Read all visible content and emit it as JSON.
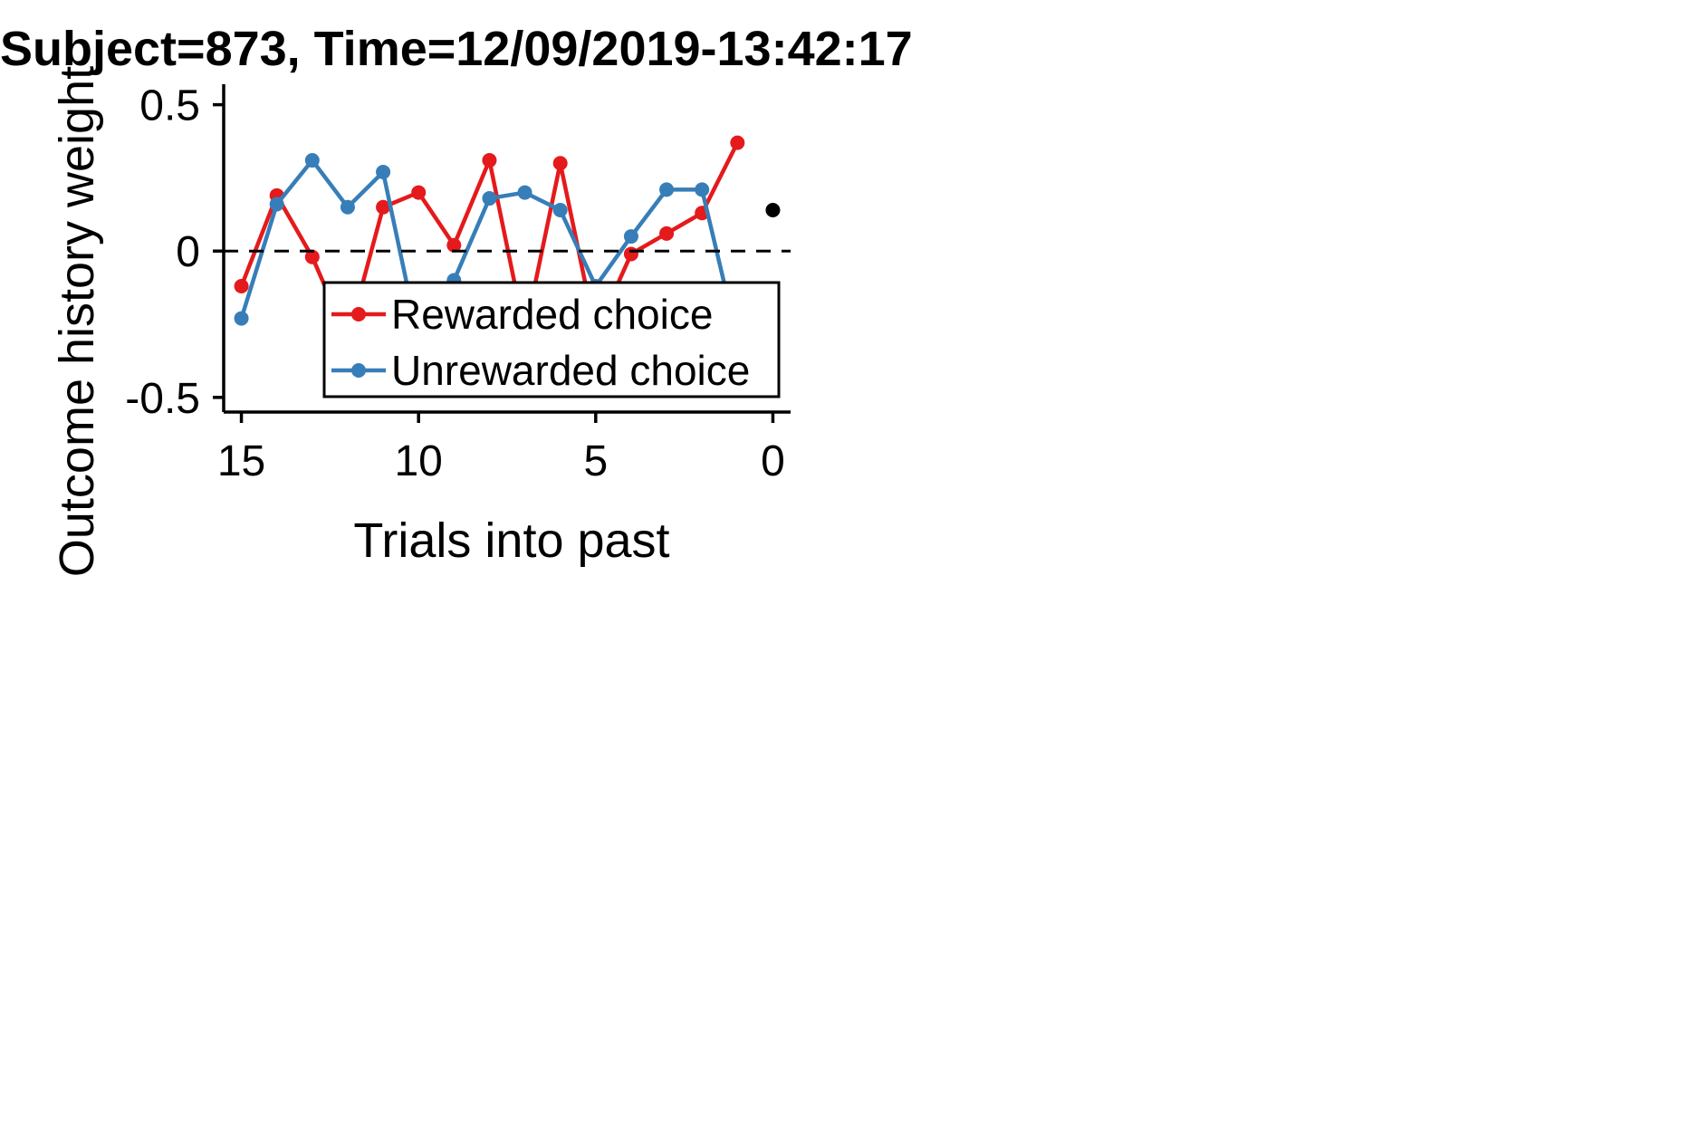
{
  "chart_data": {
    "type": "line",
    "title": "Subject=873, Time=12/09/2019-13:42:17",
    "xlabel": "Trials into past",
    "ylabel": "Outcome history weight",
    "xlim": [
      15.5,
      -0.5
    ],
    "ylim": [
      -0.55,
      0.57
    ],
    "xticks": [
      15,
      10,
      5,
      0
    ],
    "xtick_labels": [
      "15",
      "10",
      "5",
      "0"
    ],
    "yticks": [
      0.5,
      0,
      -0.5
    ],
    "ytick_labels": [
      "0.5",
      "0",
      "-0.5"
    ],
    "reference_line": {
      "y": 0,
      "style": "dashed"
    },
    "legend_position": "lower-right",
    "series": [
      {
        "name": "Rewarded choice",
        "color": "#e41a1c",
        "x": [
          15,
          14,
          13,
          12,
          11,
          10,
          9,
          8,
          7,
          6,
          5,
          4,
          3,
          2,
          1
        ],
        "y": [
          -0.12,
          0.19,
          -0.02,
          -0.3,
          0.15,
          0.2,
          0.02,
          0.31,
          -0.28,
          0.3,
          -0.28,
          -0.01,
          0.06,
          0.13,
          0.37
        ]
      },
      {
        "name": "Unrewarded choice",
        "color": "#377eb8",
        "x": [
          15,
          14,
          13,
          12,
          11,
          10,
          9,
          8,
          7,
          6,
          5,
          4,
          3,
          2,
          1
        ],
        "y": [
          -0.23,
          0.16,
          0.31,
          0.15,
          0.27,
          -0.3,
          -0.1,
          0.18,
          0.2,
          0.14,
          -0.12,
          0.05,
          0.21,
          0.21,
          -0.3
        ]
      }
    ],
    "extra_points": [
      {
        "x": 0,
        "y": 0.14,
        "color": "#000000"
      }
    ]
  }
}
